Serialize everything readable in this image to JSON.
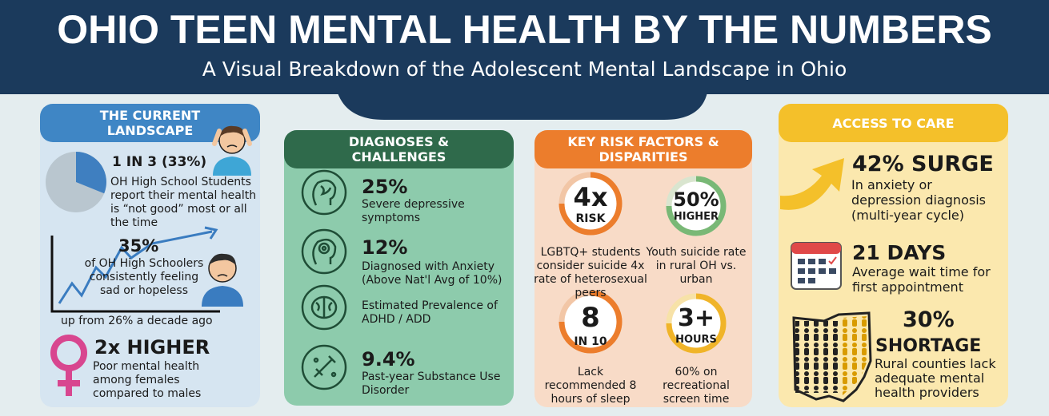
{
  "header": {
    "title": "OHIO TEEN MENTAL HEALTH BY THE NUMBERS",
    "subtitle": "A Visual Breakdown of the Adolescent Mental Landscape in Ohio"
  },
  "panels": [
    {
      "title": "THE CURRENT LANDSCAPE",
      "items": [
        {
          "stat": "1 IN 3 (33%)",
          "text": "OH High School Students report their mental health is “not good” most or all the time"
        },
        {
          "stat": "35%",
          "text": "of OH High Schoolers consistently feeling sad or hopeless",
          "note": "up from 26% a decade ago"
        },
        {
          "stat": "2x HIGHER",
          "text": "Poor mental health among females compared to males"
        }
      ]
    },
    {
      "title": "DIAGNOSES & CHALLENGES",
      "items": [
        {
          "stat": "25%",
          "text": "Severe depressive symptoms"
        },
        {
          "stat": "12%",
          "text": "Diagnosed with Anxiety",
          "note": "(Above Nat'l Avg of 10%)"
        },
        {
          "text": "Estimated Prevalence of ADHD / ADD"
        },
        {
          "stat": "9.4%",
          "text": "Past-year Substance Use Disorder"
        }
      ]
    },
    {
      "title": "KEY RISK FACTORS & DISPARITIES",
      "items": [
        {
          "stat": "4x",
          "unit": "RISK",
          "text": "LGBTQ+ students consider suicide 4x rate  of heterosexual peers"
        },
        {
          "stat": "50%",
          "unit": "HIGHER",
          "text": "Youth suicide rate in rural OH vs. urban"
        },
        {
          "stat": "8",
          "unit": "IN 10",
          "text": "Lack recommended 8 hours of sleep"
        },
        {
          "stat": "3+",
          "unit": "HOURS",
          "text": "60% on recreational screen time"
        }
      ]
    },
    {
      "title": "ACCESS TO CARE",
      "items": [
        {
          "stat": "42% SURGE",
          "text": "In anxiety or depression diagnosis (multi-year cycle)"
        },
        {
          "stat": "21 DAYS",
          "text": "Average wait time for first appointment"
        },
        {
          "stat": "30%",
          "unit": "SHORTAGE",
          "text": "Rural counties lack adequate mental health providers"
        }
      ]
    }
  ]
}
